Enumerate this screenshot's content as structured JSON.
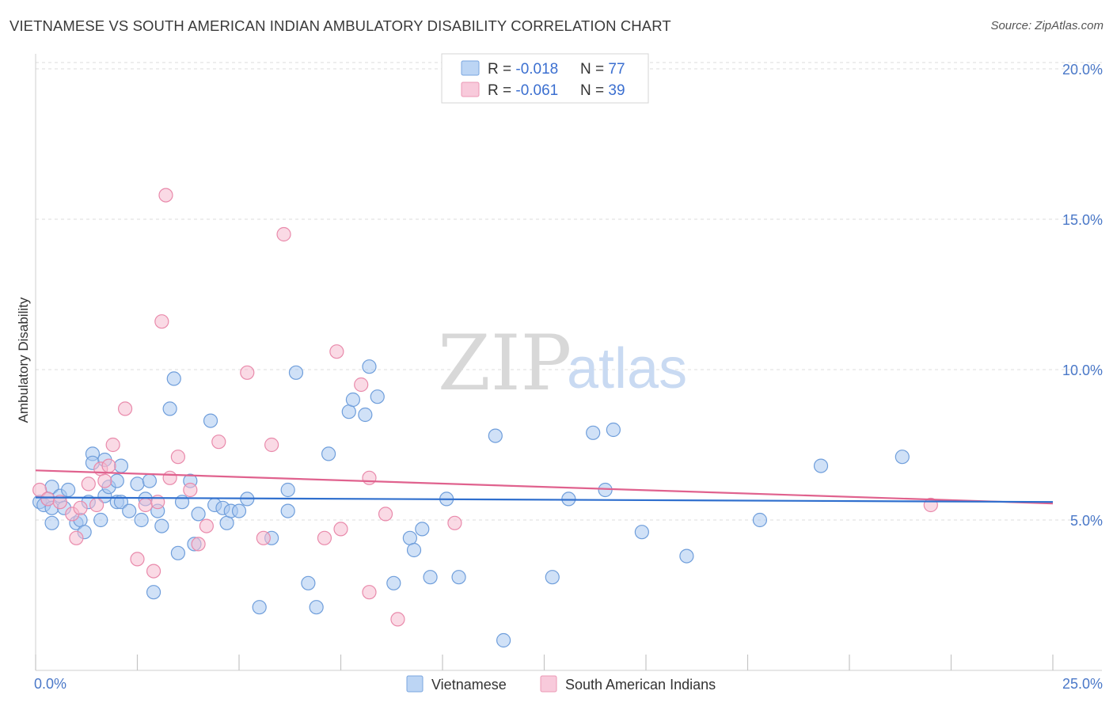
{
  "header": {
    "title": "VIETNAMESE VS SOUTH AMERICAN INDIAN AMBULATORY DISABILITY CORRELATION CHART",
    "source": "Source: ZipAtlas.com"
  },
  "watermark": {
    "zip": "ZIP",
    "atlas": "atlas"
  },
  "colors": {
    "vietnamese_fill": "#a9c8f0",
    "vietnamese_stroke": "#6f9edb",
    "vietnamese_line": "#2f6fce",
    "sai_fill": "#f6bcd0",
    "sai_stroke": "#e98aab",
    "sai_line": "#e0628e",
    "tick_label": "#4a78c8",
    "grid": "#dcdcdc"
  },
  "legend": {
    "rows": [
      {
        "r_label": "R = ",
        "r_value": "-0.018",
        "n_label": "N = ",
        "n_value": "77"
      },
      {
        "r_label": "R = ",
        "r_value": "-0.061",
        "n_label": "N = ",
        "n_value": "39"
      }
    ]
  },
  "bottom_legend": [
    "Vietnamese",
    "South American Indians"
  ],
  "chart_data": {
    "type": "scatter",
    "title": "VIETNAMESE VS SOUTH AMERICAN INDIAN AMBULATORY DISABILITY CORRELATION CHART",
    "xlabel": "",
    "ylabel": "Ambulatory Disability",
    "xlim": [
      0,
      25
    ],
    "ylim": [
      0,
      20.5
    ],
    "x_tick_labels": [
      "0.0%",
      "25.0%"
    ],
    "y_ticks": [
      5,
      10,
      15,
      20
    ],
    "y_tick_labels": [
      "5.0%",
      "10.0%",
      "15.0%",
      "20.0%"
    ],
    "grid": true,
    "legend_placement": "top-center",
    "series": [
      {
        "name": "Vietnamese",
        "r": -0.018,
        "n": 77,
        "trend": {
          "x": [
            0,
            25
          ],
          "y": [
            5.75,
            5.6
          ]
        },
        "points": [
          [
            0.1,
            5.6
          ],
          [
            0.2,
            5.5
          ],
          [
            0.3,
            5.7
          ],
          [
            0.4,
            5.4
          ],
          [
            0.4,
            6.1
          ],
          [
            0.4,
            4.9
          ],
          [
            0.6,
            5.8
          ],
          [
            0.7,
            5.4
          ],
          [
            0.8,
            6.0
          ],
          [
            1.0,
            4.9
          ],
          [
            1.1,
            5.0
          ],
          [
            1.2,
            4.6
          ],
          [
            1.3,
            5.6
          ],
          [
            1.4,
            7.2
          ],
          [
            1.4,
            6.9
          ],
          [
            1.6,
            5.0
          ],
          [
            1.7,
            5.8
          ],
          [
            1.7,
            7.0
          ],
          [
            1.8,
            6.1
          ],
          [
            2.0,
            5.6
          ],
          [
            2.0,
            6.3
          ],
          [
            2.1,
            5.6
          ],
          [
            2.1,
            6.8
          ],
          [
            2.3,
            5.3
          ],
          [
            2.5,
            6.2
          ],
          [
            2.6,
            5.0
          ],
          [
            2.7,
            5.7
          ],
          [
            2.8,
            6.3
          ],
          [
            2.9,
            2.6
          ],
          [
            3.0,
            5.3
          ],
          [
            3.1,
            4.8
          ],
          [
            3.3,
            8.7
          ],
          [
            3.4,
            9.7
          ],
          [
            3.5,
            3.9
          ],
          [
            3.6,
            5.6
          ],
          [
            3.8,
            6.3
          ],
          [
            3.9,
            4.2
          ],
          [
            4.0,
            5.2
          ],
          [
            4.3,
            8.3
          ],
          [
            4.4,
            5.5
          ],
          [
            4.6,
            5.4
          ],
          [
            4.7,
            4.9
          ],
          [
            4.8,
            5.3
          ],
          [
            5.0,
            5.3
          ],
          [
            5.2,
            5.7
          ],
          [
            5.5,
            2.1
          ],
          [
            5.8,
            4.4
          ],
          [
            6.2,
            5.3
          ],
          [
            6.2,
            6.0
          ],
          [
            6.4,
            9.9
          ],
          [
            6.7,
            2.9
          ],
          [
            6.9,
            2.1
          ],
          [
            7.2,
            7.2
          ],
          [
            7.7,
            8.6
          ],
          [
            7.8,
            9.0
          ],
          [
            8.1,
            8.5
          ],
          [
            8.2,
            10.1
          ],
          [
            8.4,
            9.1
          ],
          [
            8.8,
            2.9
          ],
          [
            9.2,
            4.4
          ],
          [
            9.3,
            4.0
          ],
          [
            9.5,
            4.7
          ],
          [
            9.7,
            3.1
          ],
          [
            10.1,
            5.7
          ],
          [
            10.4,
            3.1
          ],
          [
            11.3,
            7.8
          ],
          [
            11.5,
            1.0
          ],
          [
            12.7,
            3.1
          ],
          [
            13.1,
            5.7
          ],
          [
            13.7,
            7.9
          ],
          [
            14.0,
            6.0
          ],
          [
            14.2,
            8.0
          ],
          [
            14.9,
            4.6
          ],
          [
            16.0,
            3.8
          ],
          [
            17.8,
            5.0
          ],
          [
            19.3,
            6.8
          ],
          [
            21.3,
            7.1
          ]
        ]
      },
      {
        "name": "South American Indians",
        "r": -0.061,
        "n": 39,
        "trend": {
          "x": [
            0,
            25
          ],
          "y": [
            6.65,
            5.55
          ]
        },
        "points": [
          [
            0.1,
            6.0
          ],
          [
            0.3,
            5.7
          ],
          [
            0.6,
            5.6
          ],
          [
            0.9,
            5.2
          ],
          [
            1.0,
            4.4
          ],
          [
            1.1,
            5.4
          ],
          [
            1.3,
            6.2
          ],
          [
            1.5,
            5.5
          ],
          [
            1.6,
            6.7
          ],
          [
            1.7,
            6.3
          ],
          [
            1.8,
            6.8
          ],
          [
            1.9,
            7.5
          ],
          [
            2.2,
            8.7
          ],
          [
            2.5,
            3.7
          ],
          [
            2.7,
            5.5
          ],
          [
            2.9,
            3.3
          ],
          [
            3.0,
            5.6
          ],
          [
            3.1,
            11.6
          ],
          [
            3.2,
            15.8
          ],
          [
            3.3,
            6.4
          ],
          [
            3.5,
            7.1
          ],
          [
            3.8,
            6.0
          ],
          [
            4.0,
            4.2
          ],
          [
            4.2,
            4.8
          ],
          [
            4.5,
            7.6
          ],
          [
            5.2,
            9.9
          ],
          [
            5.6,
            4.4
          ],
          [
            5.8,
            7.5
          ],
          [
            6.1,
            14.5
          ],
          [
            7.1,
            4.4
          ],
          [
            7.4,
            10.6
          ],
          [
            7.5,
            4.7
          ],
          [
            8.0,
            9.5
          ],
          [
            8.2,
            2.6
          ],
          [
            8.2,
            6.4
          ],
          [
            8.6,
            5.2
          ],
          [
            8.9,
            1.7
          ],
          [
            10.3,
            4.9
          ],
          [
            22.0,
            5.5
          ]
        ]
      }
    ]
  }
}
